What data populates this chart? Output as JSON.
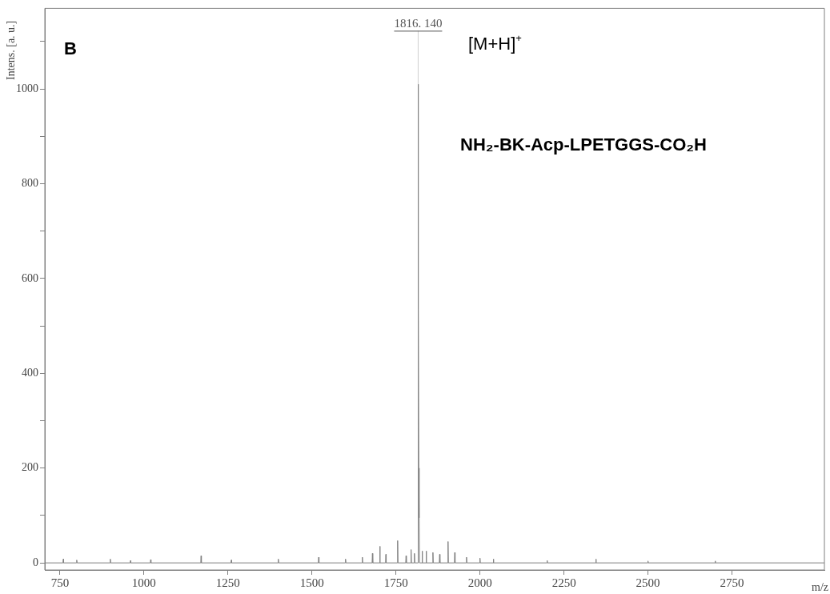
{
  "chart_data": {
    "type": "line",
    "xlabel": "m/z",
    "ylabel": "Intens. [a. u.]",
    "xlim": [
      705,
      3025
    ],
    "xticks": [
      750,
      1000,
      1250,
      1500,
      1750,
      2000,
      2250,
      2500,
      2750
    ],
    "ylim": [
      -15,
      1170
    ],
    "yticks": [
      0,
      {
        "value": 100,
        "label": null
      },
      200,
      {
        "value": 300,
        "label": null
      },
      400,
      {
        "value": 500,
        "label": null
      },
      600,
      {
        "value": 700,
        "label": null
      },
      800,
      {
        "value": 900,
        "label": null
      },
      1000,
      {
        "value": 1100,
        "label": null
      }
    ],
    "grid": false,
    "legend": false,
    "marker": "none",
    "line_style": "solid",
    "series": [
      {
        "color": "#808080",
        "x": [
          705,
          759,
          760,
          761,
          799,
          800,
          801,
          899,
          900,
          901,
          959,
          960,
          961,
          1019,
          1020,
          1021,
          1169,
          1170,
          1171,
          1259,
          1260,
          1261,
          1399,
          1400,
          1401,
          1519,
          1520,
          1521,
          1599,
          1600,
          1601,
          1649,
          1650,
          1651,
          1679,
          1680,
          1681,
          1701,
          1702,
          1703,
          1719,
          1720,
          1721,
          1754,
          1755,
          1756,
          1779,
          1780,
          1781,
          1794,
          1795,
          1796,
          1804,
          1805,
          1806,
          1815,
          1816,
          1817,
          1818,
          1819,
          1820,
          1827,
          1828,
          1829,
          1839,
          1840,
          1841,
          1859,
          1860,
          1861,
          1879,
          1880,
          1881,
          1904,
          1905,
          1906,
          1924,
          1925,
          1926,
          1959,
          1960,
          1961,
          1999,
          2000,
          2001,
          2039,
          2040,
          2041,
          2199,
          2200,
          2201,
          2344,
          2345,
          2346,
          2499,
          2500,
          2501,
          2699,
          2700,
          2701,
          3025
        ],
        "values": [
          0,
          0,
          8,
          0,
          0,
          6,
          0,
          0,
          8,
          0,
          0,
          5,
          0,
          0,
          7,
          0,
          0,
          15,
          0,
          0,
          6,
          0,
          0,
          8,
          0,
          0,
          12,
          0,
          0,
          8,
          0,
          0,
          12,
          0,
          0,
          20,
          0,
          0,
          35,
          0,
          0,
          18,
          0,
          0,
          47,
          0,
          0,
          15,
          0,
          0,
          28,
          0,
          0,
          20,
          0,
          0,
          1010,
          535,
          200,
          95,
          0,
          0,
          25,
          0,
          0,
          25,
          0,
          0,
          22,
          0,
          0,
          18,
          0,
          0,
          45,
          0,
          0,
          22,
          0,
          0,
          12,
          0,
          0,
          10,
          0,
          0,
          8,
          0,
          0,
          5,
          0,
          0,
          8,
          0,
          0,
          4,
          0,
          0,
          4,
          0,
          0
        ]
      }
    ],
    "annotations": [
      "B",
      {
        "text": "1816. 140",
        "x": 1816,
        "y": 1010
      },
      "[M+H]$^{+}$",
      "NH₂-BK-Acp-LPETGGS-CO₂H"
    ]
  }
}
